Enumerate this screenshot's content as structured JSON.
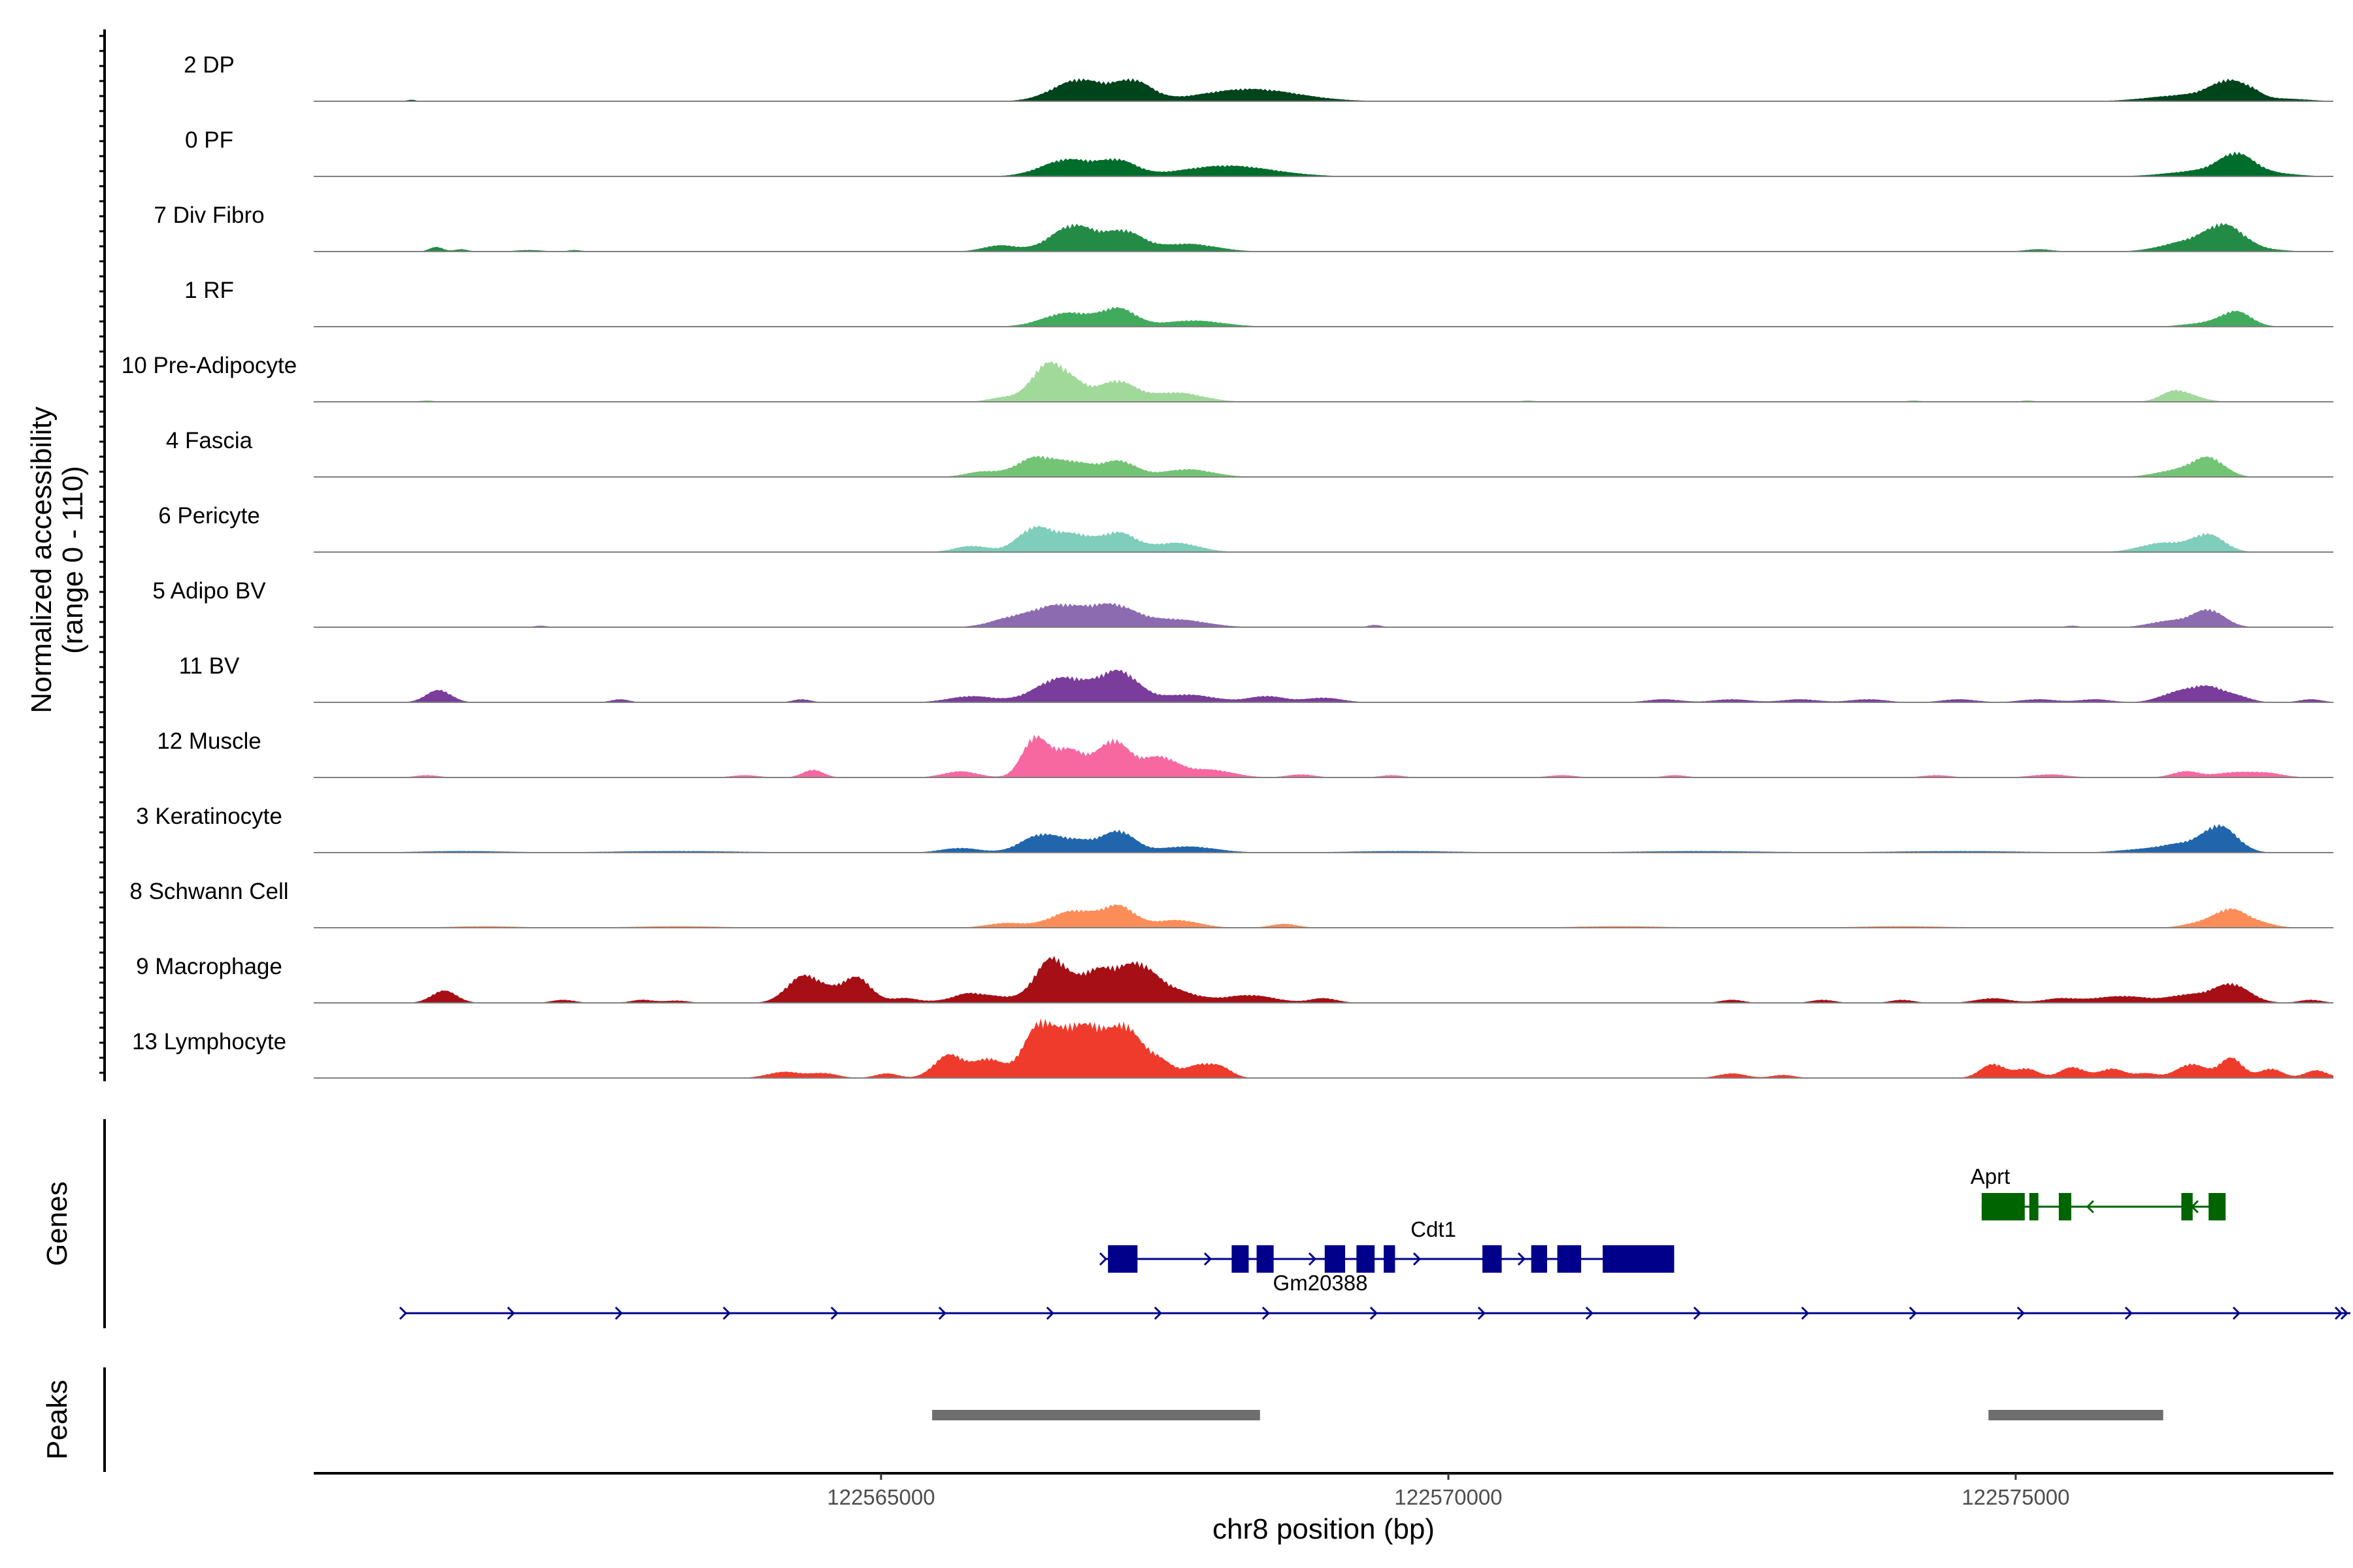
{
  "chart_data": {
    "type": "area",
    "title": "",
    "chromosome": "chr8",
    "xlim": [
      122560000,
      122577800
    ],
    "xticks": [
      122565000,
      122570000,
      122575000
    ],
    "xtick_labels": [
      "122565000",
      "122570000",
      "122575000"
    ],
    "xlabel": "chr8 position (bp)",
    "ylabel_line1": "Normalized accessibility",
    "ylabel_line2": "(range 0 - 110)",
    "ylim": [
      0,
      110
    ],
    "genes_panel_label": "Genes",
    "peaks_panel_label": "Peaks",
    "series": [
      {
        "name": "2 DP",
        "color": "#00441B",
        "peaks": [
          [
            122566750,
            28,
            230
          ],
          [
            122567230,
            24,
            160
          ],
          [
            122568250,
            16,
            420
          ],
          [
            122576900,
            24,
            170
          ],
          [
            122576500,
            8,
            320
          ],
          [
            122577400,
            3,
            200
          ],
          [
            122560860,
            2,
            40
          ],
          [
            122577100,
            3,
            60
          ]
        ]
      },
      {
        "name": "0 PF",
        "color": "#006D2C",
        "peaks": [
          [
            122566650,
            22,
            230
          ],
          [
            122567100,
            18,
            160
          ],
          [
            122568050,
            14,
            400
          ],
          [
            122576950,
            24,
            150
          ],
          [
            122576700,
            8,
            320
          ],
          [
            122577300,
            3,
            200
          ]
        ]
      },
      {
        "name": "7 Div Fibro",
        "color": "#238B45",
        "peaks": [
          [
            122566700,
            34,
            200
          ],
          [
            122567150,
            24,
            160
          ],
          [
            122567700,
            10,
            250
          ],
          [
            122566050,
            8,
            150
          ],
          [
            122576850,
            32,
            170
          ],
          [
            122576500,
            12,
            220
          ],
          [
            122561080,
            6,
            60
          ],
          [
            122561300,
            3,
            60
          ],
          [
            122561900,
            2,
            120
          ],
          [
            122562300,
            2,
            60
          ],
          [
            122575200,
            3,
            120
          ],
          [
            122577250,
            2,
            160
          ]
        ]
      },
      {
        "name": "1 RF",
        "color": "#41AB5D",
        "peaks": [
          [
            122566650,
            18,
            220
          ],
          [
            122567100,
            22,
            150
          ],
          [
            122567750,
            8,
            260
          ],
          [
            122576950,
            18,
            130
          ],
          [
            122576700,
            5,
            200
          ]
        ]
      },
      {
        "name": "10 Pre-Adipocyte",
        "color": "#A1D99B",
        "peaks": [
          [
            122566440,
            38,
            130
          ],
          [
            122566650,
            28,
            150
          ],
          [
            122567080,
            26,
            160
          ],
          [
            122567600,
            12,
            230
          ],
          [
            122566100,
            6,
            140
          ],
          [
            122576400,
            14,
            120
          ],
          [
            122576600,
            4,
            120
          ],
          [
            122561000,
            2,
            60
          ],
          [
            122575100,
            2,
            60
          ],
          [
            122574100,
            2,
            60
          ],
          [
            122570700,
            2,
            60
          ]
        ]
      },
      {
        "name": "4 Fascia",
        "color": "#74C476",
        "peaks": [
          [
            122566350,
            24,
            160
          ],
          [
            122566700,
            18,
            170
          ],
          [
            122567100,
            20,
            150
          ],
          [
            122567700,
            10,
            220
          ],
          [
            122565900,
            7,
            150
          ],
          [
            122576700,
            24,
            140
          ],
          [
            122576400,
            8,
            180
          ]
        ]
      },
      {
        "name": "6 Pericyte",
        "color": "#7FCDBB",
        "peaks": [
          [
            122566350,
            30,
            150
          ],
          [
            122566700,
            22,
            170
          ],
          [
            122567100,
            24,
            150
          ],
          [
            122567600,
            12,
            200
          ],
          [
            122565800,
            8,
            150
          ],
          [
            122576700,
            22,
            140
          ],
          [
            122576300,
            12,
            200
          ]
        ]
      },
      {
        "name": "5 Adipo BV",
        "color": "#8C6BB1",
        "peaks": [
          [
            122566550,
            28,
            240
          ],
          [
            122567050,
            26,
            200
          ],
          [
            122567600,
            10,
            260
          ],
          [
            122566100,
            8,
            170
          ],
          [
            122576700,
            22,
            140
          ],
          [
            122576350,
            8,
            170
          ],
          [
            122562000,
            2,
            60
          ],
          [
            122569350,
            3,
            60
          ],
          [
            122575500,
            2,
            60
          ]
        ]
      },
      {
        "name": "11 BV",
        "color": "#7A3D9B",
        "peaks": [
          [
            122561100,
            16,
            110
          ],
          [
            122566600,
            32,
            230
          ],
          [
            122567100,
            38,
            170
          ],
          [
            122567700,
            10,
            240
          ],
          [
            122565800,
            8,
            200
          ],
          [
            122568400,
            8,
            160
          ],
          [
            122568900,
            6,
            160
          ],
          [
            122576700,
            20,
            170
          ],
          [
            122576400,
            10,
            150
          ],
          [
            122562700,
            4,
            80
          ],
          [
            122564300,
            4,
            80
          ],
          [
            122571900,
            4,
            150
          ],
          [
            122572500,
            4,
            160
          ],
          [
            122573100,
            4,
            160
          ],
          [
            122573700,
            4,
            160
          ],
          [
            122574500,
            4,
            150
          ],
          [
            122575200,
            4,
            160
          ],
          [
            122575700,
            4,
            140
          ],
          [
            122577600,
            4,
            100
          ],
          [
            122577000,
            4,
            100
          ]
        ]
      },
      {
        "name": "12 Muscle",
        "color": "#F768A1",
        "peaks": [
          [
            122566350,
            48,
            110
          ],
          [
            122566650,
            36,
            150
          ],
          [
            122567050,
            46,
            140
          ],
          [
            122567450,
            26,
            160
          ],
          [
            122567900,
            10,
            200
          ],
          [
            122565700,
            8,
            150
          ],
          [
            122564400,
            10,
            90
          ],
          [
            122568700,
            4,
            120
          ],
          [
            122576500,
            8,
            120
          ],
          [
            122576900,
            6,
            150
          ],
          [
            122577200,
            6,
            150
          ],
          [
            122572000,
            3,
            100
          ],
          [
            122575300,
            4,
            160
          ],
          [
            122574300,
            3,
            120
          ],
          [
            122571000,
            3,
            120
          ],
          [
            122563800,
            3,
            120
          ],
          [
            122561000,
            3,
            100
          ],
          [
            122569500,
            3,
            100
          ]
        ]
      },
      {
        "name": "3 Keratinocyte",
        "color": "#2166AC",
        "peaks": [
          [
            122566400,
            22,
            170
          ],
          [
            122566750,
            14,
            170
          ],
          [
            122567100,
            26,
            140
          ],
          [
            122567700,
            8,
            250
          ],
          [
            122565700,
            6,
            170
          ],
          [
            122576800,
            34,
            150
          ],
          [
            122576450,
            10,
            170
          ],
          [
            122576100,
            4,
            200
          ],
          [
            122574500,
            2,
            600
          ],
          [
            122572200,
            2,
            600
          ],
          [
            122569600,
            2,
            500
          ],
          [
            122563200,
            2,
            600
          ],
          [
            122561300,
            2,
            400
          ]
        ]
      },
      {
        "name": "8 Schwann Cell",
        "color": "#FC8D59",
        "peaks": [
          [
            122566700,
            22,
            200
          ],
          [
            122567100,
            26,
            140
          ],
          [
            122567600,
            10,
            200
          ],
          [
            122566100,
            6,
            170
          ],
          [
            122576900,
            24,
            150
          ],
          [
            122576600,
            5,
            140
          ],
          [
            122577200,
            4,
            120
          ],
          [
            122568550,
            5,
            120
          ],
          [
            122563200,
            2,
            400
          ],
          [
            122561500,
            2,
            300
          ],
          [
            122571500,
            2,
            400
          ],
          [
            122574000,
            2,
            400
          ]
        ]
      },
      {
        "name": "9 Macrophage",
        "color": "#A50F15",
        "peaks": [
          [
            122561150,
            16,
            110
          ],
          [
            122564300,
            30,
            140
          ],
          [
            122564800,
            28,
            120
          ],
          [
            122564550,
            14,
            180
          ],
          [
            122565200,
            6,
            120
          ],
          [
            122566500,
            56,
            140
          ],
          [
            122566900,
            40,
            160
          ],
          [
            122567250,
            42,
            160
          ],
          [
            122567550,
            16,
            220
          ],
          [
            122565900,
            10,
            260
          ],
          [
            122568250,
            10,
            220
          ],
          [
            122568900,
            6,
            120
          ],
          [
            122576900,
            24,
            160
          ],
          [
            122576500,
            10,
            180
          ],
          [
            122576050,
            6,
            150
          ],
          [
            122574800,
            6,
            150
          ],
          [
            122575400,
            6,
            160
          ],
          [
            122575800,
            6,
            160
          ],
          [
            122562200,
            4,
            100
          ],
          [
            122562900,
            4,
            100
          ],
          [
            122563200,
            3,
            100
          ],
          [
            122565750,
            4,
            100
          ],
          [
            122572500,
            4,
            100
          ],
          [
            122573300,
            4,
            100
          ],
          [
            122574000,
            4,
            100
          ],
          [
            122577600,
            4,
            100
          ]
        ]
      },
      {
        "name": "13 Lymphocyte",
        "color": "#EF3B2C",
        "peaks": [
          [
            122565600,
            30,
            130
          ],
          [
            122565950,
            24,
            130
          ],
          [
            122566400,
            70,
            140
          ],
          [
            122566650,
            36,
            110
          ],
          [
            122566850,
            56,
            130
          ],
          [
            122567150,
            64,
            140
          ],
          [
            122567450,
            22,
            120
          ],
          [
            122567800,
            16,
            120
          ],
          [
            122568000,
            12,
            100
          ],
          [
            122564150,
            8,
            150
          ],
          [
            122564500,
            6,
            120
          ],
          [
            122565050,
            6,
            100
          ],
          [
            122572500,
            6,
            120
          ],
          [
            122572950,
            4,
            100
          ],
          [
            122574800,
            18,
            110
          ],
          [
            122575100,
            12,
            100
          ],
          [
            122575500,
            14,
            110
          ],
          [
            122575850,
            12,
            110
          ],
          [
            122576550,
            18,
            130
          ],
          [
            122576900,
            26,
            100
          ],
          [
            122577250,
            12,
            100
          ],
          [
            122577650,
            10,
            100
          ],
          [
            122576150,
            6,
            100
          ]
        ]
      }
    ],
    "genes": [
      {
        "name": "Aprt",
        "strand": "-",
        "start": 122574700,
        "end": 122576850,
        "exons": [
          [
            122574700,
            122575080
          ],
          [
            122575120,
            122575200
          ],
          [
            122575380,
            122575490
          ],
          [
            122576460,
            122576560
          ],
          [
            122576700,
            122576850
          ]
        ],
        "color": "#006400"
      },
      {
        "name": "Cdt1",
        "strand": "+",
        "start": 122566970,
        "end": 122571990,
        "exons": [
          [
            122567000,
            122567260
          ],
          [
            122568090,
            122568240
          ],
          [
            122568310,
            122568460
          ],
          [
            122568910,
            122569090
          ],
          [
            122569190,
            122569350
          ],
          [
            122569430,
            122569530
          ],
          [
            122570300,
            122570470
          ],
          [
            122570730,
            122570870
          ],
          [
            122570960,
            122571170
          ],
          [
            122571360,
            122571990
          ]
        ],
        "color": "#00008B"
      },
      {
        "name": "Gm20388",
        "strand": "+",
        "start": 122560800,
        "end": 122577950,
        "exons": [],
        "color": "#00008B"
      }
    ],
    "peak_regions": [
      [
        122565450,
        122568340
      ],
      [
        122574760,
        122576300
      ]
    ]
  }
}
